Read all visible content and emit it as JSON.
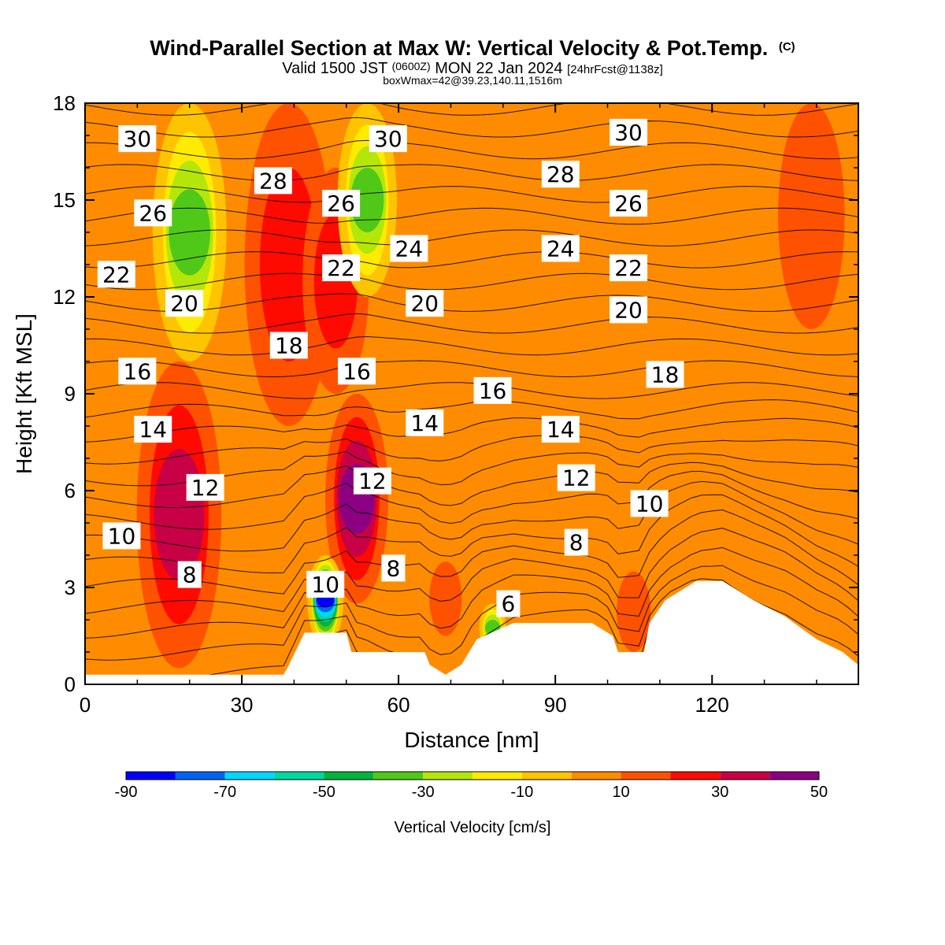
{
  "header": {
    "title_main": "Wind-Parallel Section at Max W: Vertical Velocity & Pot.Temp.",
    "title_copy": "(C)",
    "valid_a": "Valid 1500 JST",
    "valid_b": "(0600Z)",
    "valid_c": "MON 22 Jan 2024",
    "valid_d": "[24hrFcst@1138z]",
    "box_info": "boxWmax=42@39.23,140.11,1516m"
  },
  "chart_data": {
    "type": "heatmap",
    "title": "Wind-Parallel Section at Max W: Vertical Velocity & Pot.Temp.",
    "xlabel": "Distance [nm]",
    "ylabel": "Height [Kft MSL]",
    "xlim": [
      0,
      148
    ],
    "ylim": [
      0,
      18
    ],
    "x_ticks": [
      0,
      30,
      60,
      90,
      120
    ],
    "y_ticks": [
      0,
      3,
      6,
      9,
      12,
      15,
      18
    ],
    "background_value": 5,
    "updraft_bands": [
      {
        "x": 18,
        "value": 35,
        "ybottom": 0.5,
        "ytop": 10
      },
      {
        "x": 52,
        "value": 45,
        "ybottom": 2.5,
        "ytop": 9
      },
      {
        "x": 39,
        "value": 25,
        "ybottom": 8,
        "ytop": 18
      },
      {
        "x": 48,
        "value": 30,
        "ybottom": 9,
        "ytop": 16
      },
      {
        "x": 69,
        "value": 20,
        "ybottom": 1.5,
        "ytop": 3.8
      },
      {
        "x": 105,
        "value": 18,
        "ybottom": 1,
        "ytop": 3.5
      },
      {
        "x": 139,
        "value": 18,
        "ybottom": 11,
        "ytop": 18
      }
    ],
    "downdraft_bands": [
      {
        "x": 46,
        "value": -85,
        "ybottom": 1.2,
        "ytop": 4
      },
      {
        "x": 54,
        "value": -40,
        "ybottom": 12,
        "ytop": 18
      },
      {
        "x": 20,
        "value": -35,
        "ybottom": 10,
        "ytop": 18
      },
      {
        "x": 78,
        "value": -40,
        "ybottom": 1,
        "ytop": 2.5
      }
    ],
    "terrain": [
      [
        0,
        0.3
      ],
      [
        38,
        0.3
      ],
      [
        39,
        0.6
      ],
      [
        42,
        1.6
      ],
      [
        50,
        1.6
      ],
      [
        51,
        1.0
      ],
      [
        65,
        1.0
      ],
      [
        66,
        0.6
      ],
      [
        69,
        0.3
      ],
      [
        72,
        0.6
      ],
      [
        75,
        1.4
      ],
      [
        82,
        1.9
      ],
      [
        97,
        1.9
      ],
      [
        101,
        1.5
      ],
      [
        102,
        1.0
      ],
      [
        107,
        1.0
      ],
      [
        108,
        1.9
      ],
      [
        111,
        2.6
      ],
      [
        117,
        3.2
      ],
      [
        122,
        3.2
      ],
      [
        128,
        2.6
      ],
      [
        134,
        2.1
      ],
      [
        140,
        1.4
      ],
      [
        145,
        1.0
      ],
      [
        148,
        0.6
      ]
    ],
    "theta_contours": {
      "levels": [
        6,
        8,
        10,
        12,
        14,
        16,
        18,
        20,
        22,
        24,
        26,
        28,
        30
      ],
      "labels": [
        {
          "text": "30",
          "x": 10,
          "y": 16.9
        },
        {
          "text": "30",
          "x": 58,
          "y": 16.9
        },
        {
          "text": "30",
          "x": 104,
          "y": 17.1
        },
        {
          "text": "28",
          "x": 36,
          "y": 15.6
        },
        {
          "text": "28",
          "x": 91,
          "y": 15.8
        },
        {
          "text": "26",
          "x": 13,
          "y": 14.6
        },
        {
          "text": "26",
          "x": 49,
          "y": 14.9
        },
        {
          "text": "26",
          "x": 104,
          "y": 14.9
        },
        {
          "text": "24",
          "x": 62,
          "y": 13.5
        },
        {
          "text": "24",
          "x": 91,
          "y": 13.5
        },
        {
          "text": "22",
          "x": 6,
          "y": 12.7
        },
        {
          "text": "22",
          "x": 49,
          "y": 12.9
        },
        {
          "text": "22",
          "x": 104,
          "y": 12.9
        },
        {
          "text": "20",
          "x": 19,
          "y": 11.8
        },
        {
          "text": "20",
          "x": 65,
          "y": 11.8
        },
        {
          "text": "20",
          "x": 104,
          "y": 11.6
        },
        {
          "text": "18",
          "x": 39,
          "y": 10.5
        },
        {
          "text": "18",
          "x": 111,
          "y": 9.6
        },
        {
          "text": "16",
          "x": 10,
          "y": 9.7
        },
        {
          "text": "16",
          "x": 52,
          "y": 9.7
        },
        {
          "text": "16",
          "x": 78,
          "y": 9.1
        },
        {
          "text": "14",
          "x": 13,
          "y": 7.9
        },
        {
          "text": "14",
          "x": 65,
          "y": 8.1
        },
        {
          "text": "14",
          "x": 91,
          "y": 7.9
        },
        {
          "text": "12",
          "x": 23,
          "y": 6.1
        },
        {
          "text": "12",
          "x": 55,
          "y": 6.3
        },
        {
          "text": "12",
          "x": 94,
          "y": 6.4
        },
        {
          "text": "10",
          "x": 7,
          "y": 4.6
        },
        {
          "text": "10",
          "x": 46,
          "y": 3.1
        },
        {
          "text": "10",
          "x": 108,
          "y": 5.6
        },
        {
          "text": "8",
          "x": 20,
          "y": 3.4
        },
        {
          "text": "8",
          "x": 59,
          "y": 3.6
        },
        {
          "text": "8",
          "x": 94,
          "y": 4.4
        },
        {
          "text": "6",
          "x": 81,
          "y": 2.5
        }
      ]
    },
    "colorbar": {
      "label": "Vertical Velocity [cm/s]",
      "bounds": [
        -90,
        -80,
        -70,
        -60,
        -50,
        -40,
        -30,
        -20,
        -10,
        0,
        10,
        20,
        30,
        40,
        50
      ],
      "tick_labels": [
        "-90",
        "-70",
        "-50",
        "-30",
        "-10",
        "10",
        "30",
        "50"
      ],
      "colors": [
        "#0000ff",
        "#0064f0",
        "#00d8ff",
        "#00d8a0",
        "#00b43c",
        "#50c818",
        "#b4e60a",
        "#ffeb00",
        "#ffc400",
        "#ff8c00",
        "#ff5200",
        "#ff0a00",
        "#c80046",
        "#8c0082"
      ]
    }
  }
}
